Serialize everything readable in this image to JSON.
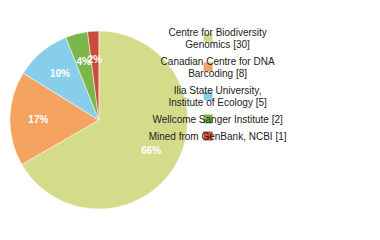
{
  "chart_data": {
    "type": "pie",
    "categories": [
      "Centre for Biodiversity\nGenomics [30]",
      "Canadian Centre for DNA\nBarcoding [8]",
      "Ilia State University,\nInstitute of Ecology [5]",
      "Wellcome Sanger Institute [2]",
      "Mined from GenBank, NCBI [1]"
    ],
    "values": [
      66,
      17,
      10,
      4,
      2
    ],
    "value_labels": [
      "66%",
      "17%",
      "10%",
      "4%",
      "2%"
    ],
    "colors": [
      "#d4dc8a",
      "#f4a460",
      "#87ceeb",
      "#7ab648",
      "#cc4c3b"
    ],
    "data_labels": true,
    "legend": "right"
  }
}
